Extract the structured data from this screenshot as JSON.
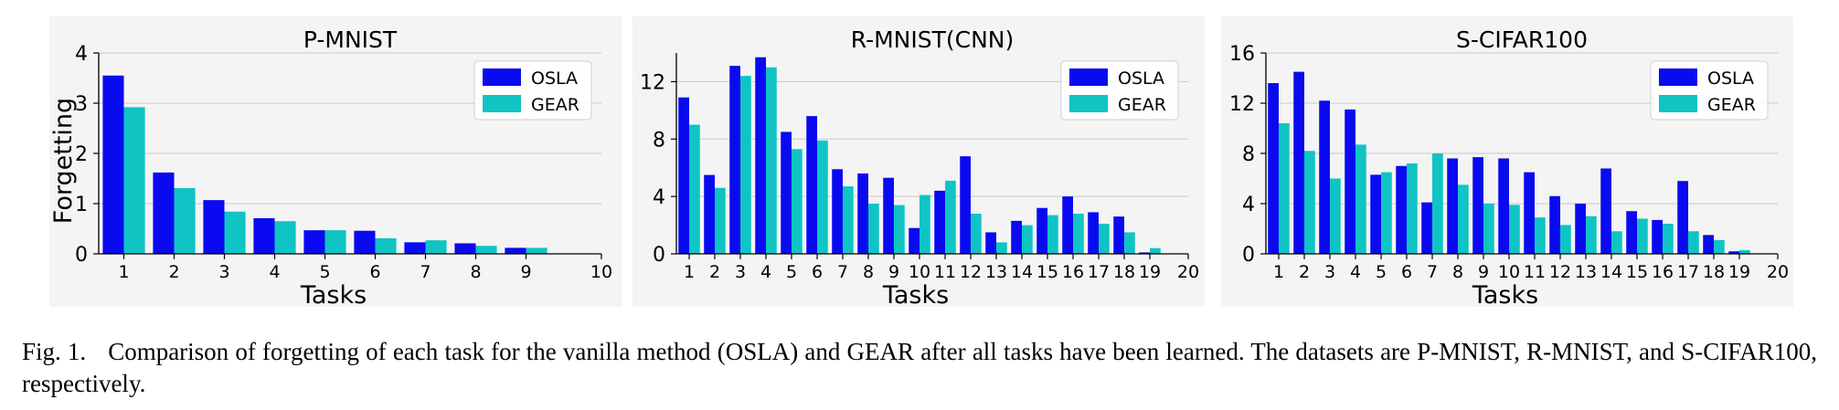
{
  "caption": {
    "label": "Fig. 1.",
    "text": "Comparison of forgetting of each task for the vanilla method (OSLA) and GEAR after all tasks have been learned. The datasets are P-MNIST, R-MNIST, and S-CIFAR100, respectively."
  },
  "colors": {
    "OSLA": "#0a0af0",
    "GEAR": "#10c4c4"
  },
  "chart_data": [
    {
      "type": "bar",
      "title": "P-MNIST",
      "xlabel": "Tasks",
      "ylabel": "Forgetting",
      "ylim": [
        0,
        4
      ],
      "yticks": [
        0,
        1,
        2,
        3,
        4
      ],
      "categories": [
        "1",
        "2",
        "3",
        "4",
        "5",
        "6",
        "7",
        "8",
        "9",
        "10"
      ],
      "grid": "horizontal",
      "legend": "top-right",
      "series": [
        {
          "name": "OSLA",
          "values": [
            3.55,
            1.62,
            1.07,
            0.71,
            0.47,
            0.46,
            0.23,
            0.21,
            0.12,
            null
          ]
        },
        {
          "name": "GEAR",
          "values": [
            2.92,
            1.31,
            0.84,
            0.65,
            0.47,
            0.31,
            0.27,
            0.16,
            0.12,
            null
          ]
        }
      ]
    },
    {
      "type": "bar",
      "title": "R-MNIST(CNN)",
      "xlabel": "Tasks",
      "ylabel": "",
      "ylim": [
        0,
        14
      ],
      "yticks": [
        0,
        4,
        8,
        12
      ],
      "categories": [
        "1",
        "2",
        "3",
        "4",
        "5",
        "6",
        "7",
        "8",
        "9",
        "10",
        "11",
        "12",
        "13",
        "14",
        "15",
        "16",
        "17",
        "18",
        "19",
        "20"
      ],
      "grid": "horizontal",
      "legend": "top-right",
      "series": [
        {
          "name": "OSLA",
          "values": [
            10.9,
            5.5,
            13.1,
            13.7,
            8.5,
            9.6,
            5.9,
            5.6,
            5.3,
            1.8,
            4.4,
            6.8,
            1.5,
            2.3,
            3.2,
            4.0,
            2.9,
            2.6,
            0.1,
            null
          ]
        },
        {
          "name": "GEAR",
          "values": [
            9.0,
            4.6,
            12.4,
            13.0,
            7.3,
            7.9,
            4.7,
            3.5,
            3.4,
            4.1,
            5.1,
            2.8,
            0.8,
            2.0,
            2.7,
            2.8,
            2.1,
            1.5,
            0.4,
            null
          ]
        }
      ]
    },
    {
      "type": "bar",
      "title": "S-CIFAR100",
      "xlabel": "Tasks",
      "ylabel": "",
      "ylim": [
        0,
        16
      ],
      "yticks": [
        0,
        4,
        8,
        12,
        16
      ],
      "categories": [
        "1",
        "2",
        "3",
        "4",
        "5",
        "6",
        "7",
        "8",
        "9",
        "10",
        "11",
        "12",
        "13",
        "14",
        "15",
        "16",
        "17",
        "18",
        "19",
        "20"
      ],
      "grid": "horizontal",
      "legend": "top-right",
      "series": [
        {
          "name": "OSLA",
          "values": [
            13.6,
            14.5,
            12.2,
            11.5,
            6.3,
            7.0,
            4.1,
            7.6,
            7.7,
            7.6,
            6.5,
            4.6,
            4.0,
            6.8,
            3.4,
            2.7,
            5.8,
            1.5,
            0.2,
            null
          ]
        },
        {
          "name": "GEAR",
          "values": [
            10.4,
            8.2,
            6.0,
            8.7,
            6.5,
            7.2,
            8.0,
            5.5,
            4.0,
            3.9,
            2.9,
            2.3,
            3.0,
            1.8,
            2.8,
            2.4,
            1.8,
            1.1,
            0.3,
            null
          ]
        }
      ]
    }
  ]
}
